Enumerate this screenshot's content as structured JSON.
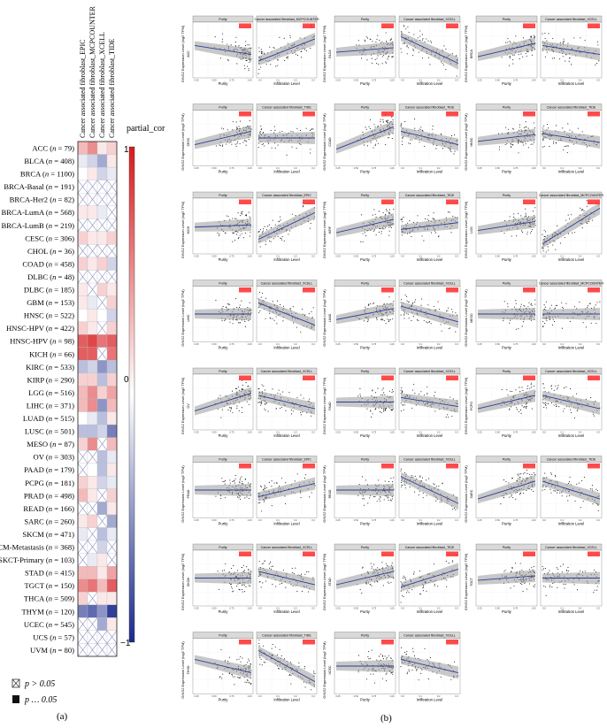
{
  "panel_a": {
    "label": "(a)",
    "columns": [
      "Cancer associated fibroblast_EPIC",
      "Cancer associated fibroblast_MCPCOUNTER",
      "Cancer associated fibroblast_XCELL",
      "Cancer associated fibroblast_TIDE"
    ],
    "legend": {
      "title": "partial_cor",
      "ticks": [
        "1",
        "0",
        "−1"
      ],
      "ns_label": "p > 0.05",
      "sig_label": "p … 0.05",
      "colors": {
        "high": "#d7191c",
        "mid": "#ffffff",
        "low": "#1a2a8c"
      }
    },
    "rows": [
      {
        "name": "ACC",
        "n": "79"
      },
      {
        "name": "BLCA",
        "n": "408"
      },
      {
        "name": "BRCA",
        "n": "1100"
      },
      {
        "name": "BRCA-Basal",
        "n": "191"
      },
      {
        "name": "BRCA-Her2",
        "n": "82"
      },
      {
        "name": "BRCA-LumA",
        "n": "568"
      },
      {
        "name": "BRCA-LumB",
        "n": "219"
      },
      {
        "name": "CESC",
        "n": "306"
      },
      {
        "name": "CHOL",
        "n": "36"
      },
      {
        "name": "COAD",
        "n": "458"
      },
      {
        "name": "DLBC",
        "n": "48"
      },
      {
        "name": "DLBC",
        "n": "185"
      },
      {
        "name": "GBM",
        "n": "153"
      },
      {
        "name": "HNSC",
        "n": "522"
      },
      {
        "name": "HNSC-HPV",
        "n": "422"
      },
      {
        "name": "HNSC-HPV",
        "n": "98"
      },
      {
        "name": "KICH",
        "n": "66"
      },
      {
        "name": "KIRC",
        "n": "533"
      },
      {
        "name": "KIRP",
        "n": "290"
      },
      {
        "name": "LGG",
        "n": "516"
      },
      {
        "name": "LIHC",
        "n": "371"
      },
      {
        "name": "LUAD",
        "n": "515"
      },
      {
        "name": "LUSC",
        "n": "501"
      },
      {
        "name": "MESO",
        "n": "87"
      },
      {
        "name": "OV",
        "n": "303"
      },
      {
        "name": "PAAD",
        "n": "179"
      },
      {
        "name": "PCPG",
        "n": "181"
      },
      {
        "name": "PRAD",
        "n": "498"
      },
      {
        "name": "READ",
        "n": "166"
      },
      {
        "name": "SARC",
        "n": "260"
      },
      {
        "name": "SKCM",
        "n": "471"
      },
      {
        "name": "SKCM-Metastasis",
        "n": "368"
      },
      {
        "name": "SKCT-Primary",
        "n": "103"
      },
      {
        "name": "STAD",
        "n": "415"
      },
      {
        "name": "TGCT",
        "n": "150"
      },
      {
        "name": "THCA",
        "n": "509"
      },
      {
        "name": "THYM",
        "n": "120"
      },
      {
        "name": "UCEC",
        "n": "545"
      },
      {
        "name": "UCS",
        "n": "57"
      },
      {
        "name": "UVM",
        "n": "80"
      }
    ]
  },
  "panel_b": {
    "label": "(b)",
    "ylabel": "GINS2 Expression Level (log2 TPM)",
    "purity_title": "Purity",
    "purity_xlabel": "Purity",
    "infil_xlabel": "Infiltration Level",
    "plots": [
      {
        "cancer": "ACC",
        "method": "Cancer associated fibroblast_MCPCOUNTER",
        "slope_p": -0.2,
        "slope_i": 0.5
      },
      {
        "cancer": "BLCA",
        "method": "Cancer associated fibroblast_XCELL",
        "slope_p": 0.1,
        "slope_i": -0.6
      },
      {
        "cancer": "BRCA",
        "method": "Cancer associated fibroblast_XCELL",
        "slope_p": 0.3,
        "slope_i": -0.2
      },
      {
        "cancer": "CESC",
        "method": "Cancer associated fibroblast_TIDE",
        "slope_p": 0.3,
        "slope_i": 0.0
      },
      {
        "cancer": "COAD",
        "method": "Cancer associated fibroblast_TIDE",
        "slope_p": 0.5,
        "slope_i": -0.3
      },
      {
        "cancer": "HNSC",
        "method": "Cancer associated fibroblast_TIDE",
        "slope_p": 0.15,
        "slope_i": -0.2
      },
      {
        "cancer": "KICH",
        "method": "Cancer associated fibroblast_EPIC",
        "slope_p": 0.05,
        "slope_i": 0.6
      },
      {
        "cancer": "KIRP",
        "method": "Cancer associated fibroblast_TIDE",
        "slope_p": 0.3,
        "slope_i": 0.15
      },
      {
        "cancer": "LGG",
        "method": "Cancer associated fibroblast_MCPCOUNTER",
        "slope_p": 0.2,
        "slope_i": 0.8
      },
      {
        "cancer": "LIHC",
        "method": "Cancer associated fibroblast_XCELL",
        "slope_p": 0.0,
        "slope_i": -0.5
      },
      {
        "cancer": "LUAD",
        "method": "Cancer associated fibroblast_XCELL",
        "slope_p": 0.25,
        "slope_i": -0.35
      },
      {
        "cancer": "MESO",
        "method": "Cancer associated fibroblast_MCPCOUNTER",
        "slope_p": 0.0,
        "slope_i": 0.0
      },
      {
        "cancer": "OV",
        "method": "Cancer associated fibroblast_XCELL",
        "slope_p": 0.4,
        "slope_i": -0.3
      },
      {
        "cancer": "PAAD",
        "method": "Cancer associated fibroblast_XCELL",
        "slope_p": 0.0,
        "slope_i": -0.2
      },
      {
        "cancer": "PCPG",
        "method": "Cancer associated fibroblast_XCELL",
        "slope_p": 0.3,
        "slope_i": -0.3
      },
      {
        "cancer": "PRAD",
        "method": "Cancer associated fibroblast_EPIC",
        "slope_p": 0.0,
        "slope_i": 0.3
      },
      {
        "cancer": "READ",
        "method": "Cancer associated fibroblast_XCELL",
        "slope_p": 0.0,
        "slope_i": -0.6
      },
      {
        "cancer": "SARC",
        "method": "Cancer associated fibroblast_TIDE",
        "slope_p": 0.4,
        "slope_i": -0.4
      },
      {
        "cancer": "SKCM",
        "method": "Cancer associated fibroblast_XCELL",
        "slope_p": 0.0,
        "slope_i": -0.3
      },
      {
        "cancer": "STAD",
        "method": "Cancer associated fibroblast_TIDE",
        "slope_p": 0.3,
        "slope_i": 0.4
      },
      {
        "cancer": "TGCT",
        "method": "Cancer associated fibroblast_XCELL",
        "slope_p": 0.1,
        "slope_i": 0.0
      },
      {
        "cancer": "THYM",
        "method": "Cancer associated fibroblast_TIDE",
        "slope_p": -0.3,
        "slope_i": -0.7
      },
      {
        "cancer": "UCEC",
        "method": "Cancer associated fibroblast_XCELL",
        "slope_p": 0.0,
        "slope_i": -0.3
      }
    ]
  },
  "chart_data": [
    {
      "type": "heatmap",
      "rows": [
        "ACC",
        "BLCA",
        "BRCA",
        "BRCA-Basal",
        "BRCA-Her2",
        "BRCA-LumA",
        "BRCA-LumB",
        "CESC",
        "CHOL",
        "COAD",
        "DLBC",
        "DLBC",
        "GBM",
        "HNSC",
        "HNSC-HPV",
        "HNSC-HPV",
        "KICH",
        "KIRC",
        "KIRP",
        "LGG",
        "LIHC",
        "LUAD",
        "LUSC",
        "MESO",
        "OV",
        "PAAD",
        "PCPG",
        "PRAD",
        "READ",
        "SARC",
        "SKCM",
        "SKCM-Metastasis",
        "SKCT-Primary",
        "STAD",
        "TGCT",
        "THCA",
        "THYM",
        "UCEC",
        "UCS",
        "UVM"
      ],
      "columns": [
        "Cancer associated fibroblast_EPIC",
        "Cancer associated fibroblast_MCPCOUNTER",
        "Cancer associated fibroblast_XCELL",
        "Cancer associated fibroblast_TIDE"
      ],
      "values": [
        [
          0.3,
          0.5,
          0.1,
          0.2
        ],
        [
          -0.1,
          -0.2,
          -0.4,
          0.1
        ],
        [
          0.0,
          0.1,
          -0.2,
          -0.1
        ],
        [
          0.0,
          0.0,
          0.0,
          0.0
        ],
        [
          0.0,
          0.0,
          0.0,
          0.0
        ],
        [
          0.1,
          0.1,
          -0.1,
          0.0
        ],
        [
          0.0,
          0.0,
          0.0,
          0.0
        ],
        [
          0.2,
          0.1,
          0.1,
          0.2
        ],
        [
          0.0,
          0.0,
          0.0,
          0.0
        ],
        [
          0.2,
          0.1,
          0.2,
          -0.2
        ],
        [
          0.1,
          0.2,
          0.0,
          0.1
        ],
        [
          0.1,
          0.0,
          0.2,
          0.1
        ],
        [
          0.1,
          -0.1,
          0.0,
          0.2
        ],
        [
          0.0,
          0.1,
          0.0,
          -0.2
        ],
        [
          0.2,
          0.1,
          0.0,
          0.2
        ],
        [
          0.7,
          0.8,
          0.6,
          0.7
        ],
        [
          0.7,
          0.7,
          0.3,
          0.6
        ],
        [
          -0.3,
          -0.2,
          -0.5,
          -0.3
        ],
        [
          0.2,
          0.2,
          -0.3,
          0.2
        ],
        [
          0.3,
          0.5,
          0.2,
          0.4
        ],
        [
          0.3,
          0.5,
          -0.5,
          0.3
        ],
        [
          0.0,
          -0.1,
          -0.3,
          0.1
        ],
        [
          -0.3,
          -0.3,
          -0.2,
          -0.6
        ],
        [
          0.2,
          0.5,
          0.0,
          0.3
        ],
        [
          0.0,
          0.0,
          -0.3,
          -0.1
        ],
        [
          0.0,
          0.0,
          -0.3,
          0.1
        ],
        [
          0.2,
          0.1,
          -0.2,
          -0.1
        ],
        [
          0.3,
          0.1,
          0.0,
          0.2
        ],
        [
          0.0,
          0.0,
          -0.4,
          0.1
        ],
        [
          0.1,
          0.2,
          0.0,
          -0.4
        ],
        [
          -0.1,
          0.0,
          -0.3,
          -0.1
        ],
        [
          0.0,
          0.0,
          -0.2,
          0.0
        ],
        [
          0.0,
          -0.1,
          0.1,
          0.0
        ],
        [
          0.3,
          0.3,
          0.1,
          0.4
        ],
        [
          0.5,
          0.6,
          0.3,
          0.7
        ],
        [
          0.2,
          0.0,
          0.1,
          0.1
        ],
        [
          -0.6,
          -0.7,
          -0.5,
          -0.9
        ],
        [
          0.0,
          0.0,
          -0.4,
          0.1
        ],
        [
          0.0,
          0.0,
          0.0,
          0.0
        ],
        [
          0.0,
          0.0,
          0.0,
          0.0
        ]
      ],
      "not_significant": [
        [
          false,
          false,
          false,
          false
        ],
        [
          false,
          false,
          false,
          false
        ],
        [
          false,
          false,
          false,
          false
        ],
        [
          true,
          true,
          true,
          true
        ],
        [
          true,
          true,
          true,
          true
        ],
        [
          false,
          false,
          false,
          true
        ],
        [
          true,
          true,
          true,
          true
        ],
        [
          false,
          false,
          false,
          false
        ],
        [
          true,
          true,
          true,
          true
        ],
        [
          false,
          false,
          false,
          false
        ],
        [
          true,
          true,
          true,
          true
        ],
        [
          false,
          true,
          false,
          false
        ],
        [
          false,
          false,
          true,
          false
        ],
        [
          false,
          false,
          false,
          false
        ],
        [
          false,
          false,
          true,
          false
        ],
        [
          false,
          false,
          false,
          false
        ],
        [
          false,
          false,
          true,
          false
        ],
        [
          false,
          false,
          false,
          false
        ],
        [
          false,
          false,
          false,
          false
        ],
        [
          false,
          false,
          false,
          false
        ],
        [
          false,
          false,
          false,
          false
        ],
        [
          false,
          false,
          false,
          false
        ],
        [
          false,
          false,
          false,
          false
        ],
        [
          false,
          false,
          true,
          false
        ],
        [
          true,
          true,
          false,
          false
        ],
        [
          true,
          false,
          false,
          false
        ],
        [
          false,
          false,
          false,
          false
        ],
        [
          false,
          false,
          true,
          false
        ],
        [
          true,
          true,
          false,
          false
        ],
        [
          false,
          false,
          true,
          false
        ],
        [
          false,
          true,
          false,
          false
        ],
        [
          true,
          true,
          false,
          true
        ],
        [
          true,
          false,
          false,
          true
        ],
        [
          false,
          false,
          false,
          false
        ],
        [
          false,
          false,
          false,
          false
        ],
        [
          false,
          true,
          false,
          false
        ],
        [
          false,
          false,
          false,
          false
        ],
        [
          true,
          true,
          false,
          false
        ],
        [
          true,
          true,
          true,
          true
        ],
        [
          true,
          true,
          true,
          true
        ]
      ],
      "colorbar": {
        "title": "partial_cor",
        "range": [
          -1,
          1
        ]
      }
    }
  ]
}
